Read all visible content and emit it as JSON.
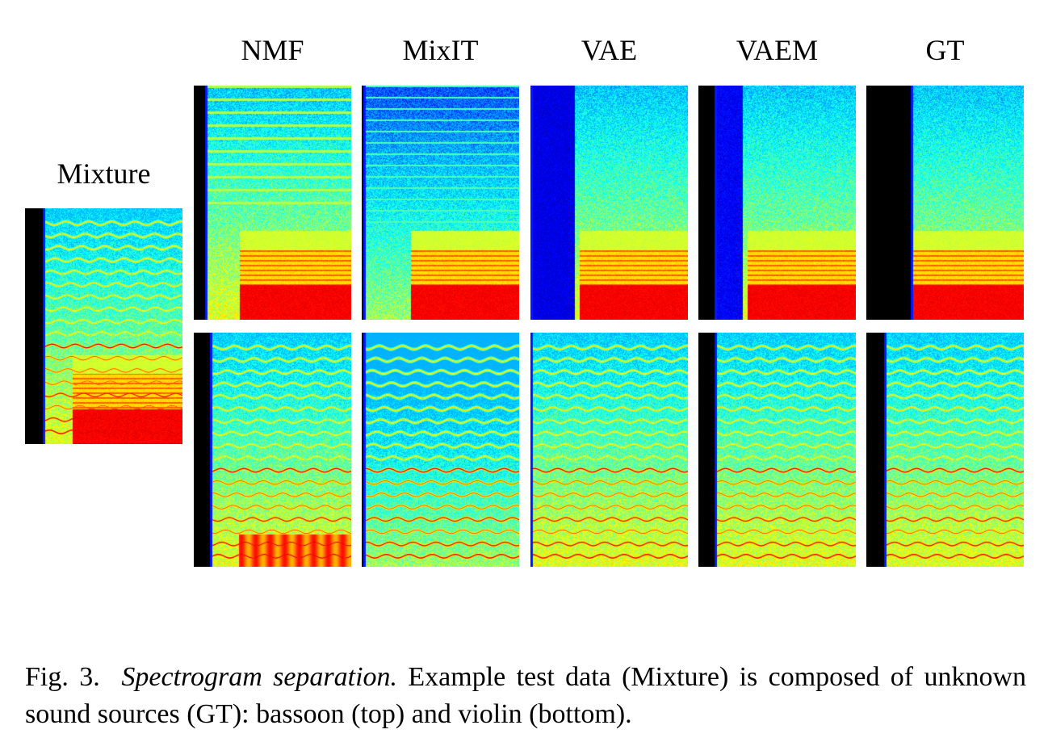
{
  "figure": {
    "mixture_title": "Mixture",
    "column_titles": [
      "NMF",
      "MixIT",
      "VAE",
      "VAEM",
      "GT"
    ],
    "rows": [
      "bassoon",
      "violin"
    ],
    "colormap": "jet",
    "colors": {
      "background": "#000000",
      "low": "#1a3cff",
      "mid": "#2ee6c8",
      "high_yellow": "#f5f02a",
      "peak_red": "#d81a00"
    }
  },
  "caption": {
    "label": "Fig. 3.",
    "title": "Spectrogram separation.",
    "text": "Example test data (Mixture) is composed of unknown sound sources (GT): bassoon (top) and violin (bottom)."
  }
}
